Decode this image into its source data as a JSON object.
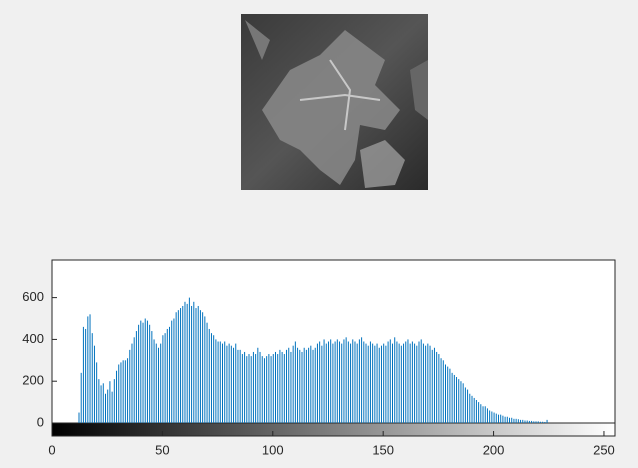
{
  "chart_data": {
    "type": "histogram",
    "values": [
      0,
      0,
      0,
      0,
      0,
      0,
      0,
      0,
      0,
      0,
      0,
      0,
      50,
      240,
      460,
      450,
      510,
      520,
      430,
      370,
      290,
      210,
      180,
      190,
      140,
      160,
      200,
      150,
      210,
      250,
      280,
      290,
      300,
      300,
      310,
      350,
      380,
      410,
      440,
      470,
      490,
      480,
      500,
      490,
      470,
      440,
      400,
      380,
      360,
      380,
      420,
      430,
      450,
      460,
      490,
      500,
      530,
      540,
      550,
      560,
      580,
      570,
      600,
      560,
      580,
      550,
      560,
      540,
      530,
      510,
      480,
      450,
      430,
      420,
      400,
      390,
      390,
      380,
      390,
      370,
      380,
      370,
      360,
      380,
      350,
      350,
      330,
      340,
      320,
      330,
      320,
      340,
      330,
      360,
      340,
      320,
      310,
      320,
      330,
      320,
      330,
      340,
      330,
      350,
      340,
      330,
      350,
      360,
      340,
      370,
      390,
      360,
      350,
      340,
      360,
      350,
      360,
      370,
      350,
      360,
      380,
      390,
      370,
      400,
      380,
      390,
      400,
      380,
      390,
      400,
      390,
      380,
      400,
      410,
      390,
      380,
      400,
      390,
      380,
      400,
      410,
      390,
      380,
      370,
      390,
      380,
      370,
      380,
      360,
      370,
      380,
      370,
      390,
      400,
      380,
      410,
      390,
      380,
      370,
      380,
      390,
      400,
      380,
      390,
      380,
      370,
      390,
      400,
      380,
      370,
      380,
      370,
      350,
      360,
      340,
      330,
      310,
      300,
      280,
      270,
      260,
      240,
      230,
      220,
      210,
      200,
      190,
      170,
      160,
      140,
      130,
      120,
      110,
      100,
      90,
      80,
      80,
      70,
      60,
      55,
      50,
      45,
      40,
      40,
      35,
      30,
      30,
      25,
      25,
      20,
      20,
      18,
      15,
      15,
      12,
      12,
      10,
      10,
      8,
      8,
      8,
      6,
      6,
      5,
      15,
      0,
      0,
      0,
      0,
      0,
      0,
      0,
      0,
      0,
      0,
      0,
      0,
      0,
      0,
      0,
      0,
      0,
      0,
      0,
      0,
      0,
      0,
      0,
      0,
      0,
      0,
      0,
      0,
      0,
      0,
      0
    ],
    "color": "#0072bd",
    "xlim": [
      0,
      255
    ],
    "xticks": [
      0,
      50,
      100,
      150,
      200,
      250
    ],
    "ylim": [
      0,
      780
    ],
    "yticks": [
      0,
      200,
      400,
      600
    ]
  }
}
